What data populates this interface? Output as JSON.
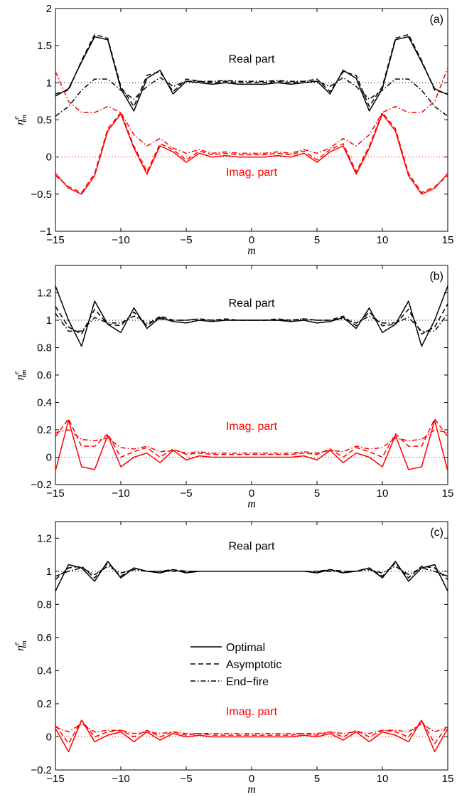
{
  "chart_data": [
    {
      "type": "line",
      "panel_label": "(a)",
      "xlabel": "m",
      "ylabel": "η",
      "ylabel_sup": "e",
      "ylabel_sub": "m",
      "xlim": [
        -15,
        15
      ],
      "ylim": [
        -1,
        2
      ],
      "xticks": [
        -15,
        -10,
        -5,
        0,
        5,
        10,
        15
      ],
      "yticks": [
        -1,
        -0.5,
        0,
        0.5,
        1,
        1.5,
        2
      ],
      "yticklabels": [
        "−1",
        "−0.5",
        "0",
        "0.5",
        "1",
        "1.5",
        "2"
      ],
      "xticklabels": [
        "−15",
        "−10",
        "−5",
        "0",
        "5",
        "10",
        "15"
      ],
      "annotations": [
        {
          "text": "Real part",
          "x": 0,
          "y": 1.27,
          "color": "#000000"
        },
        {
          "text": "Imag. part",
          "x": 0,
          "y": -0.25,
          "color": "#ff0000"
        }
      ],
      "reference_lines": [
        {
          "y": 1,
          "color": "#000000"
        },
        {
          "y": 0,
          "color": "#ff0000"
        }
      ],
      "x": [
        -15,
        -14,
        -13,
        -12,
        -11,
        -10,
        -9,
        -8,
        -7,
        -6,
        -5,
        -4,
        -3,
        -2,
        -1,
        0,
        1,
        2,
        3,
        4,
        5,
        6,
        7,
        8,
        9,
        10,
        11,
        12,
        13,
        14,
        15
      ],
      "series": [
        {
          "group": "real",
          "style": "optimal",
          "color": "#000000",
          "values": [
            0.82,
            0.92,
            1.28,
            1.62,
            1.58,
            0.92,
            0.62,
            1.06,
            1.17,
            0.85,
            1.02,
            1.0,
            0.98,
            1.0,
            0.98,
            0.98,
            0.98,
            1.0,
            0.98,
            1.0,
            1.02,
            0.85,
            1.17,
            1.06,
            0.62,
            0.92,
            1.58,
            1.62,
            1.28,
            0.92,
            0.84
          ]
        },
        {
          "group": "real",
          "style": "asymptotic",
          "color": "#000000",
          "values": [
            0.85,
            0.9,
            1.3,
            1.65,
            1.6,
            0.95,
            0.68,
            1.1,
            1.15,
            0.88,
            1.05,
            1.02,
            1.0,
            1.02,
            1.0,
            1.0,
            1.0,
            1.02,
            1.0,
            1.02,
            1.05,
            0.88,
            1.15,
            1.1,
            0.68,
            0.95,
            1.6,
            1.65,
            1.3,
            0.9,
            0.85
          ]
        },
        {
          "group": "real",
          "style": "endfire",
          "color": "#000000",
          "values": [
            0.55,
            0.68,
            0.9,
            1.05,
            1.05,
            0.9,
            0.78,
            0.95,
            1.07,
            0.95,
            1.02,
            1.02,
            1.02,
            1.03,
            1.02,
            1.02,
            1.02,
            1.03,
            1.02,
            1.02,
            1.02,
            0.95,
            1.07,
            0.95,
            0.78,
            0.9,
            1.05,
            1.05,
            0.9,
            0.68,
            0.55
          ]
        },
        {
          "group": "imag",
          "style": "optimal",
          "color": "#ff0000",
          "values": [
            -0.22,
            -0.42,
            -0.5,
            -0.25,
            0.35,
            0.58,
            0.12,
            -0.23,
            0.15,
            0.07,
            -0.07,
            0.05,
            0.0,
            0.02,
            0.0,
            0.0,
            0.0,
            0.02,
            0.0,
            0.05,
            -0.07,
            0.07,
            0.15,
            -0.23,
            0.12,
            0.58,
            0.35,
            -0.25,
            -0.5,
            -0.42,
            -0.22
          ]
        },
        {
          "group": "imag",
          "style": "asymptotic",
          "color": "#ff0000",
          "values": [
            -0.25,
            -0.4,
            -0.48,
            -0.22,
            0.38,
            0.6,
            0.15,
            -0.2,
            0.18,
            0.1,
            -0.04,
            0.08,
            0.03,
            0.05,
            0.03,
            0.03,
            0.03,
            0.05,
            0.03,
            0.08,
            -0.04,
            0.1,
            0.18,
            -0.2,
            0.15,
            0.6,
            0.38,
            -0.22,
            -0.48,
            -0.4,
            -0.25
          ]
        },
        {
          "group": "imag",
          "style": "endfire",
          "color": "#ff0000",
          "values": [
            1.15,
            0.75,
            0.6,
            0.6,
            0.68,
            0.6,
            0.3,
            0.15,
            0.25,
            0.12,
            0.05,
            0.1,
            0.05,
            0.07,
            0.05,
            0.05,
            0.05,
            0.07,
            0.05,
            0.1,
            0.05,
            0.12,
            0.25,
            0.15,
            0.3,
            0.6,
            0.68,
            0.6,
            0.6,
            0.75,
            1.2
          ]
        }
      ]
    },
    {
      "type": "line",
      "panel_label": "(b)",
      "xlabel": "m",
      "ylabel": "η",
      "ylabel_sup": "e",
      "ylabel_sub": "m",
      "xlim": [
        -15,
        15
      ],
      "ylim": [
        -0.2,
        1.4
      ],
      "xticks": [
        -15,
        -10,
        -5,
        0,
        5,
        10,
        15
      ],
      "yticks": [
        -0.2,
        0,
        0.2,
        0.4,
        0.6,
        0.8,
        1,
        1.2
      ],
      "yticklabels": [
        "−0.2",
        "0",
        "0.2",
        "0.4",
        "0.6",
        "0.8",
        "1",
        "1.2"
      ],
      "xticklabels": [
        "−15",
        "−10",
        "−5",
        "0",
        "5",
        "10",
        "15"
      ],
      "annotations": [
        {
          "text": "Real part",
          "x": 0,
          "y": 1.1,
          "color": "#000000"
        },
        {
          "text": "Imag. part",
          "x": 0,
          "y": 0.2,
          "color": "#ff0000"
        }
      ],
      "reference_lines": [
        {
          "y": 1,
          "color": "#000000"
        },
        {
          "y": 0,
          "color": "#ff0000"
        }
      ],
      "x": [
        -15,
        -14,
        -13,
        -12,
        -11,
        -10,
        -9,
        -8,
        -7,
        -6,
        -5,
        -4,
        -3,
        -2,
        -1,
        0,
        1,
        2,
        3,
        4,
        5,
        6,
        7,
        8,
        9,
        10,
        11,
        12,
        13,
        14,
        15
      ],
      "series": [
        {
          "group": "real",
          "style": "optimal",
          "color": "#000000",
          "values": [
            1.25,
            1.0,
            0.81,
            1.14,
            0.97,
            0.91,
            1.09,
            0.94,
            1.02,
            0.99,
            0.98,
            1.0,
            0.99,
            1.0,
            1.0,
            1.0,
            1.0,
            1.0,
            0.99,
            1.0,
            0.98,
            0.99,
            1.02,
            0.94,
            1.09,
            0.91,
            0.97,
            1.14,
            0.81,
            1.0,
            1.25
          ]
        },
        {
          "group": "real",
          "style": "asymptotic",
          "color": "#000000",
          "values": [
            1.1,
            0.95,
            0.9,
            1.08,
            0.97,
            0.96,
            1.06,
            0.96,
            1.03,
            1.0,
            1.0,
            1.01,
            1.0,
            1.01,
            1.0,
            1.0,
            1.0,
            1.01,
            1.0,
            1.01,
            1.0,
            1.0,
            1.03,
            0.96,
            1.06,
            0.96,
            0.97,
            1.08,
            0.9,
            0.95,
            1.12
          ]
        },
        {
          "group": "real",
          "style": "endfire",
          "color": "#000000",
          "values": [
            1.05,
            0.92,
            0.92,
            1.02,
            0.98,
            0.98,
            1.03,
            0.98,
            1.01,
            1.0,
            1.0,
            1.01,
            1.0,
            1.0,
            1.0,
            1.0,
            1.0,
            1.0,
            1.0,
            1.01,
            1.0,
            1.0,
            1.01,
            0.98,
            1.03,
            0.98,
            0.98,
            1.02,
            0.92,
            0.92,
            1.05
          ]
        },
        {
          "group": "imag",
          "style": "optimal",
          "color": "#ff0000",
          "values": [
            -0.1,
            0.27,
            -0.07,
            -0.09,
            0.16,
            -0.07,
            0.0,
            0.03,
            -0.04,
            0.05,
            -0.02,
            0.01,
            0.0,
            0.0,
            0.0,
            0.0,
            0.0,
            0.0,
            0.0,
            0.01,
            -0.02,
            0.05,
            -0.04,
            0.03,
            0.0,
            -0.07,
            0.16,
            -0.09,
            -0.07,
            0.27,
            -0.1
          ]
        },
        {
          "group": "imag",
          "style": "asymptotic",
          "color": "#ff0000",
          "values": [
            0.15,
            0.28,
            0.08,
            0.08,
            0.17,
            0.0,
            0.04,
            0.07,
            0.0,
            0.06,
            0.02,
            0.03,
            0.02,
            0.02,
            0.02,
            0.02,
            0.02,
            0.02,
            0.02,
            0.03,
            0.02,
            0.06,
            0.0,
            0.07,
            0.04,
            0.0,
            0.17,
            0.08,
            0.08,
            0.28,
            0.15
          ]
        },
        {
          "group": "imag",
          "style": "endfire",
          "color": "#ff0000",
          "values": [
            0.18,
            0.2,
            0.13,
            0.12,
            0.14,
            0.07,
            0.06,
            0.08,
            0.04,
            0.05,
            0.03,
            0.04,
            0.03,
            0.03,
            0.03,
            0.03,
            0.03,
            0.03,
            0.03,
            0.04,
            0.03,
            0.05,
            0.04,
            0.08,
            0.06,
            0.07,
            0.14,
            0.12,
            0.13,
            0.2,
            0.18
          ]
        }
      ]
    },
    {
      "type": "line",
      "panel_label": "(c)",
      "xlabel": "m",
      "ylabel": "η",
      "ylabel_sup": "e",
      "ylabel_sub": "m",
      "xlim": [
        -15,
        15
      ],
      "ylim": [
        -0.2,
        1.3
      ],
      "xticks": [
        -15,
        -10,
        -5,
        0,
        5,
        10,
        15
      ],
      "yticks": [
        -0.2,
        0,
        0.2,
        0.4,
        0.6,
        0.8,
        1,
        1.2
      ],
      "yticklabels": [
        "−0.2",
        "0",
        "0.2",
        "0.4",
        "0.6",
        "0.8",
        "1",
        "1.2"
      ],
      "xticklabels": [
        "−15",
        "−10",
        "−5",
        "0",
        "5",
        "10",
        "15"
      ],
      "annotations": [
        {
          "text": "Real part",
          "x": 0,
          "y": 1.13,
          "color": "#000000"
        },
        {
          "text": "Imag. part",
          "x": 0,
          "y": 0.13,
          "color": "#ff0000"
        }
      ],
      "reference_lines": [
        {
          "y": 1,
          "color": "#000000"
        },
        {
          "y": 0,
          "color": "#ff0000"
        }
      ],
      "legend": {
        "placement": "center",
        "entries": [
          {
            "label": "Optimal",
            "style": "optimal"
          },
          {
            "label": "Asymptotic",
            "style": "asymptotic"
          },
          {
            "label": "End−fire",
            "style": "endfire"
          }
        ]
      },
      "x": [
        -15,
        -14,
        -13,
        -12,
        -11,
        -10,
        -9,
        -8,
        -7,
        -6,
        -5,
        -4,
        -3,
        -2,
        -1,
        0,
        1,
        2,
        3,
        4,
        5,
        6,
        7,
        8,
        9,
        10,
        11,
        12,
        13,
        14,
        15
      ],
      "series": [
        {
          "group": "real",
          "style": "optimal",
          "color": "#000000",
          "values": [
            0.88,
            1.04,
            1.02,
            0.94,
            1.06,
            0.96,
            1.02,
            1.0,
            0.99,
            1.01,
            0.99,
            1.0,
            1.0,
            1.0,
            1.0,
            1.0,
            1.0,
            1.0,
            1.0,
            1.0,
            0.99,
            1.01,
            0.99,
            1.0,
            1.02,
            0.96,
            1.06,
            0.94,
            1.02,
            1.04,
            0.88
          ]
        },
        {
          "group": "real",
          "style": "asymptotic",
          "color": "#000000",
          "values": [
            0.95,
            1.02,
            1.03,
            0.96,
            1.05,
            0.97,
            1.02,
            1.0,
            1.0,
            1.01,
            1.0,
            1.0,
            1.0,
            1.0,
            1.0,
            1.0,
            1.0,
            1.0,
            1.0,
            1.0,
            1.0,
            1.01,
            1.0,
            1.0,
            1.02,
            0.97,
            1.05,
            0.96,
            1.03,
            1.02,
            0.95
          ]
        },
        {
          "group": "real",
          "style": "endfire",
          "color": "#000000",
          "values": [
            0.97,
            1.0,
            1.02,
            0.98,
            1.03,
            0.99,
            1.01,
            1.0,
            1.0,
            1.0,
            1.0,
            1.0,
            1.0,
            1.0,
            1.0,
            1.0,
            1.0,
            1.0,
            1.0,
            1.0,
            1.0,
            1.0,
            1.0,
            1.0,
            1.01,
            0.99,
            1.03,
            0.98,
            1.02,
            1.0,
            0.97
          ]
        },
        {
          "group": "imag",
          "style": "optimal",
          "color": "#ff0000",
          "values": [
            0.05,
            -0.09,
            0.1,
            -0.03,
            0.01,
            0.03,
            -0.03,
            0.03,
            -0.02,
            0.02,
            0.0,
            0.01,
            0.0,
            0.0,
            0.0,
            0.0,
            0.0,
            0.0,
            0.0,
            0.01,
            0.0,
            0.02,
            -0.02,
            0.03,
            -0.03,
            0.03,
            0.01,
            -0.03,
            0.1,
            -0.09,
            0.05
          ]
        },
        {
          "group": "imag",
          "style": "asymptotic",
          "color": "#ff0000",
          "values": [
            0.07,
            -0.04,
            0.1,
            0.0,
            0.03,
            0.04,
            0.0,
            0.04,
            0.0,
            0.03,
            0.01,
            0.02,
            0.01,
            0.01,
            0.01,
            0.01,
            0.01,
            0.01,
            0.01,
            0.02,
            0.01,
            0.03,
            0.0,
            0.04,
            0.0,
            0.04,
            0.03,
            0.0,
            0.1,
            -0.04,
            0.07
          ]
        },
        {
          "group": "imag",
          "style": "endfire",
          "color": "#ff0000",
          "values": [
            0.06,
            0.03,
            0.08,
            0.03,
            0.04,
            0.04,
            0.02,
            0.03,
            0.02,
            0.03,
            0.02,
            0.02,
            0.02,
            0.02,
            0.02,
            0.02,
            0.02,
            0.02,
            0.02,
            0.02,
            0.02,
            0.03,
            0.02,
            0.03,
            0.02,
            0.04,
            0.04,
            0.03,
            0.08,
            0.03,
            0.06
          ]
        }
      ]
    }
  ]
}
